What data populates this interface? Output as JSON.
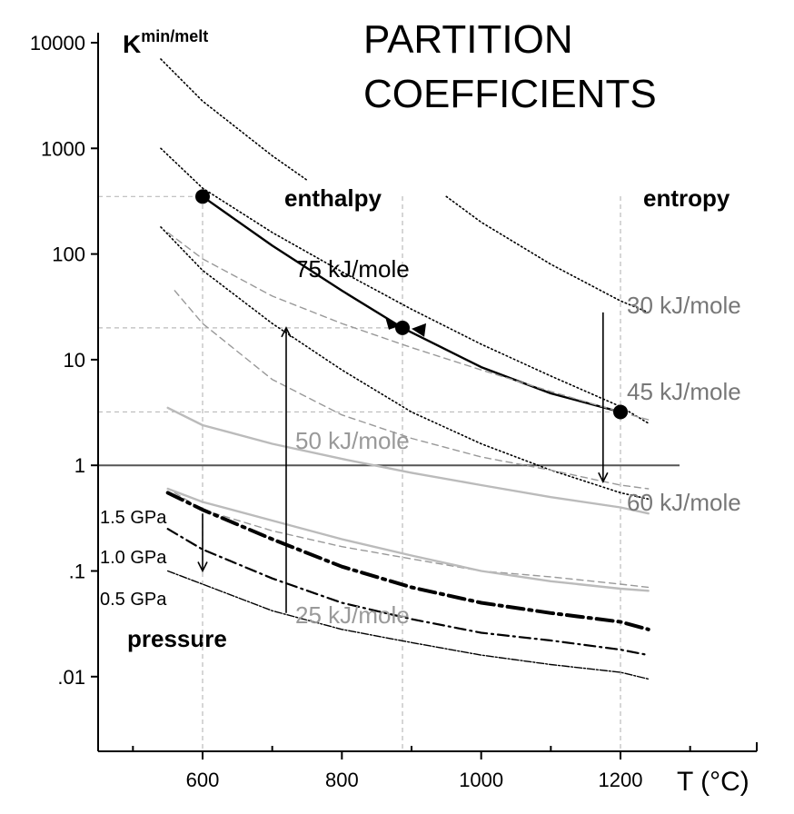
{
  "chart_data": {
    "type": "line",
    "title_lines": [
      "PARTITION",
      "COEFFICIENTS"
    ],
    "ylabel_main": "K",
    "ylabel_sup": "min/melt",
    "xlabel": "T (°C)",
    "x_ticks": [
      600,
      800,
      1000,
      1200
    ],
    "x_tick_labels": [
      "600",
      "800",
      "1000",
      "1200"
    ],
    "y_ticks": [
      0.01,
      0.1,
      1,
      10,
      100,
      1000,
      10000
    ],
    "y_tick_labels": [
      ".01",
      ".1",
      "1",
      "10",
      "100",
      "1000",
      "10000"
    ],
    "xlim": [
      440,
      1380
    ],
    "ylim": [
      0.0015,
      16000
    ],
    "log_y": true,
    "annotations": {
      "enthalpy": "enthalpy",
      "entropy": "entropy",
      "pressure": "pressure",
      "gpa_1_5": "1.5 GPa",
      "gpa_1_0": "1.0 GPa",
      "gpa_0_5": "0.5 GPa"
    },
    "series": [
      {
        "label": "75 kJ/mole",
        "style": "solid-black",
        "color": "#000000",
        "x": [
          600,
          700,
          800,
          887,
          1000,
          1100,
          1200
        ],
        "y": [
          350,
          120,
          45,
          20,
          8.5,
          4.8,
          3.2
        ]
      },
      {
        "label": "30 kJ/mole",
        "style": "dotted-black",
        "color": "#000000",
        "x": [
          540,
          600,
          700,
          750
        ],
        "y": [
          7000,
          2800,
          850,
          500
        ]
      },
      {
        "label": "",
        "style": "dotted-black",
        "color": "#000000",
        "x": [
          950,
          1000,
          1100,
          1200,
          1240
        ],
        "y": [
          350,
          200,
          80,
          36,
          28
        ]
      },
      {
        "label": "45 kJ/mole",
        "style": "dotted-black",
        "color": "#000000",
        "x": [
          540,
          600,
          700,
          800,
          900,
          1000,
          1100,
          1200,
          1240
        ],
        "y": [
          1000,
          420,
          160,
          68,
          30,
          14,
          7,
          3.6,
          2.5
        ]
      },
      {
        "label": "60 kJ/mole",
        "style": "dotted-black",
        "color": "#000000",
        "x": [
          540,
          600,
          700,
          800,
          900,
          1000,
          1100,
          1200,
          1240
        ],
        "y": [
          180,
          70,
          22,
          8,
          3.2,
          1.6,
          0.9,
          0.55,
          0.48
        ]
      },
      {
        "label": "",
        "style": "dashed-gray",
        "color": "#999999",
        "x": [
          550,
          600,
          700,
          800,
          900,
          1000,
          1100,
          1200,
          1240
        ],
        "y": [
          160,
          90,
          40,
          22,
          13,
          8,
          5,
          3.2,
          2.7
        ]
      },
      {
        "label": "",
        "style": "dashed-gray",
        "color": "#999999",
        "x": [
          560,
          600,
          700,
          800,
          900,
          1000,
          1100,
          1200,
          1240
        ],
        "y": [
          45,
          22,
          6.5,
          3,
          1.8,
          1.2,
          0.9,
          0.65,
          0.6
        ]
      },
      {
        "label": "",
        "style": "dashed-gray",
        "color": "#999999",
        "x": [
          560,
          600,
          700,
          800,
          900,
          1000,
          1100,
          1200,
          1240
        ],
        "y": [
          0.55,
          0.38,
          0.24,
          0.17,
          0.13,
          0.1,
          0.088,
          0.075,
          0.07
        ]
      },
      {
        "label": "50 kJ/mole",
        "style": "solid-gray",
        "color": "#bbbbbb",
        "x": [
          550,
          600,
          700,
          800,
          900,
          1000,
          1100,
          1200,
          1240
        ],
        "y": [
          3.5,
          2.4,
          1.6,
          1.15,
          0.85,
          0.65,
          0.5,
          0.4,
          0.35
        ]
      },
      {
        "label": "",
        "style": "solid-gray",
        "color": "#bbbbbb",
        "x": [
          550,
          600,
          700,
          800,
          900,
          1000,
          1100,
          1200,
          1240
        ],
        "y": [
          0.6,
          0.45,
          0.3,
          0.2,
          0.14,
          0.1,
          0.08,
          0.068,
          0.065
        ]
      },
      {
        "label": "",
        "style": "dashdot-thick",
        "color": "#000000",
        "x": [
          550,
          600,
          700,
          800,
          900,
          1000,
          1100,
          1200,
          1240
        ],
        "y": [
          0.55,
          0.38,
          0.2,
          0.11,
          0.07,
          0.05,
          0.04,
          0.033,
          0.028
        ]
      },
      {
        "label": "",
        "style": "dashdot-thin",
        "color": "#000000",
        "x": [
          550,
          600,
          700,
          800,
          900,
          1000,
          1100,
          1200,
          1240
        ],
        "y": [
          0.25,
          0.16,
          0.085,
          0.05,
          0.035,
          0.026,
          0.022,
          0.018,
          0.016
        ]
      },
      {
        "label": "25 kJ/mole",
        "style": "dashdot-lower",
        "color": "#000000",
        "x": [
          550,
          600,
          700,
          800,
          900,
          1000,
          1100,
          1200,
          1240
        ],
        "y": [
          0.1,
          0.075,
          0.042,
          0.028,
          0.021,
          0.016,
          0.013,
          0.011,
          0.0095
        ]
      }
    ],
    "points": [
      {
        "x": 600,
        "y": 350
      },
      {
        "x": 887,
        "y": 20
      },
      {
        "x": 1200,
        "y": 3.2
      }
    ],
    "guides": {
      "vertical_x": [
        600,
        887,
        1200
      ],
      "horizontal": [
        {
          "y": 350,
          "x_to": 600
        },
        {
          "y": 20,
          "x_to": 887
        },
        {
          "y": 3.2,
          "x_to": 1200
        }
      ]
    },
    "unity_line_y": 1,
    "arrows": [
      {
        "x": 720,
        "y_from": 0.04,
        "y_to": 20
      },
      {
        "x": 1175,
        "y_from": 28,
        "y_to": 0.7
      },
      {
        "x": 600,
        "y_from": 0.35,
        "y_to": 0.1
      }
    ]
  }
}
